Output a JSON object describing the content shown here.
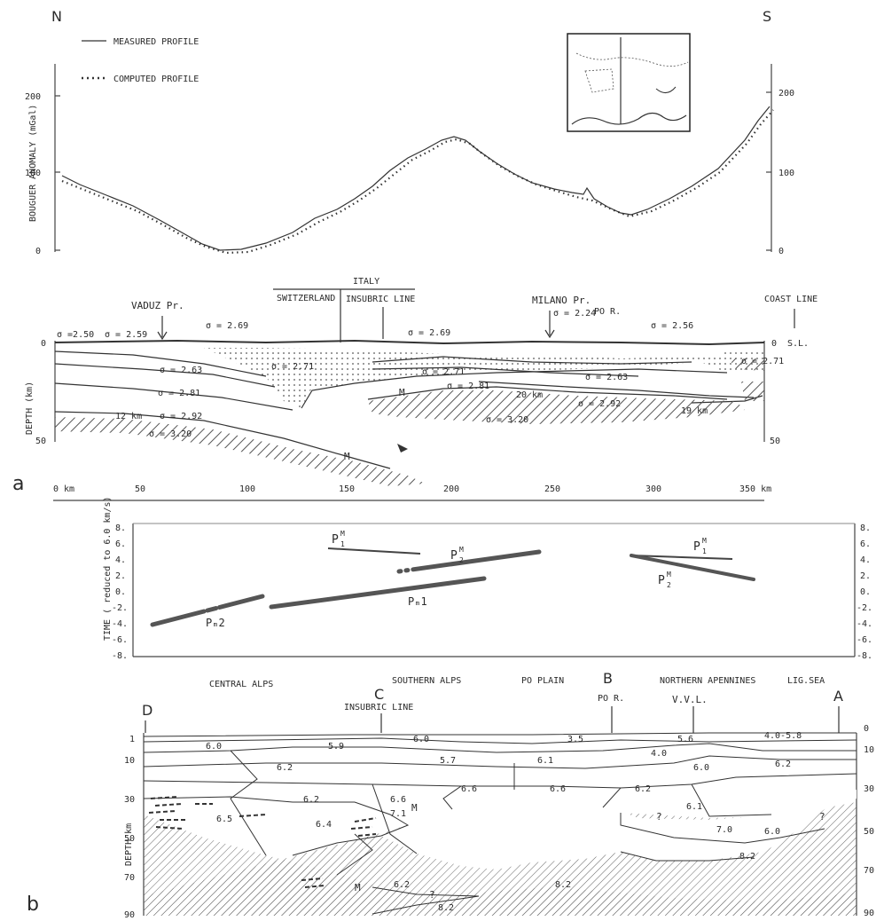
{
  "panel_labels": {
    "a": "a",
    "b": "b"
  },
  "top": {
    "north": "N",
    "south": "S",
    "legend": {
      "measured": "MEASURED PROFILE",
      "computed": "COMPUTED PROFILE"
    },
    "y_label": "BOUGUER ANOMALY (mGal)",
    "y_ticks_left": [
      "200",
      "100",
      "0"
    ],
    "y_ticks_right": [
      "200",
      "100",
      "0"
    ]
  },
  "section_a": {
    "labels": {
      "italy": "ITALY",
      "switzerland": "SWITZERLAND",
      "insubric": "INSUBRIC LINE",
      "vaduz": "VADUZ Pr.",
      "milano": "MILANO Pr.",
      "po": "PO R.",
      "coast": "COAST LINE",
      "sl": "S.L.",
      "m1": "M",
      "m2": "M",
      "depth": "DEPTH (km)"
    },
    "density": {
      "d1": "σ =2.50",
      "d2": "σ = 2.59",
      "d3": "σ = 2.69",
      "d4": "σ = 2.69",
      "d5": "σ = 2.24",
      "d6": "σ = 2.56",
      "d7": "σ = 2.71",
      "d8": "σ = 2.63",
      "d9": "σ = 2.71",
      "d10": "σ = 2.71",
      "d11": "σ = 2.63",
      "d12": "σ = 2.81",
      "d13": "σ = 2.81",
      "d14": "σ = 2.92",
      "d15": "σ = 2.92",
      "d16": "σ = 3.20",
      "d17": "σ = 3.20"
    },
    "small": {
      "k1": "12 km",
      "k2": "20 km",
      "k3": "19 km"
    },
    "y_left": [
      "0",
      "50"
    ],
    "y_right": [
      "0",
      "50"
    ],
    "x_ticks": [
      "0 km",
      "50",
      "100",
      "150",
      "200",
      "250",
      "300",
      "350 km"
    ]
  },
  "time_panel": {
    "y_label": "TIME ( reduced to 6.0 km/s)",
    "y_left": [
      "8.",
      "6.",
      "4.",
      "2.",
      "0.",
      "-2.",
      "-4.",
      "-6.",
      "-8."
    ],
    "y_right": [
      "8.",
      "6.",
      "4.",
      "2.",
      "0.",
      "-2.",
      "-4.",
      "-6.",
      "-8."
    ],
    "phases": {
      "p1a": "P",
      "p1a_sup": "M",
      "p1a_sub": "1",
      "p2a": "P",
      "p2a_sup": "M",
      "p2a_sub": "2",
      "p1b": "P",
      "p1b_sup": "M",
      "p1b_sub": "1",
      "p2b": "P",
      "p2b_sup": "M",
      "p2b_sub": "2",
      "pm1": "Pₘ1",
      "pm2": "Pₘ2"
    }
  },
  "section_b": {
    "regions": [
      "CENTRAL ALPS",
      "SOUTHERN ALPS",
      "PO PLAIN",
      "NORTHERN APENNINES",
      "LIG.SEA"
    ],
    "points": {
      "d": "D",
      "c": "C",
      "b": "B",
      "a": "A"
    },
    "insubric": "INSUBRIC LINE",
    "po": "PO R.",
    "vvl": "V.V.L.",
    "depth": "DEPTH km",
    "y_left": [
      "1",
      "10",
      "30",
      "50",
      "70",
      "90"
    ],
    "y_right": [
      "0",
      "10",
      "30",
      "50",
      "70",
      "90"
    ],
    "velocities": {
      "v1": "6.0",
      "v2": "5.9",
      "v3": "6.0",
      "v4": "3.5",
      "v5": "5.6",
      "v6": "4.0-5.8",
      "v7": "6.2",
      "v8": "5.7",
      "v9": "6.1",
      "v10": "4.0",
      "v11": "6.0",
      "v12": "6.2",
      "v13": "6.2",
      "v14": "6.6",
      "v15": "6.6",
      "v16": "6.6",
      "v17": "6.2",
      "v18": "6.5",
      "v19": "6.4",
      "v20": "7.1",
      "v21": "6.1",
      "v22": "7.0",
      "v23": "6.0",
      "v24": "6.2",
      "v25": "8.2",
      "v26": "8.2",
      "v27": "8.2",
      "q1": "?",
      "q2": "?",
      "q3": "?",
      "m1": "M",
      "m2": "M"
    }
  }
}
